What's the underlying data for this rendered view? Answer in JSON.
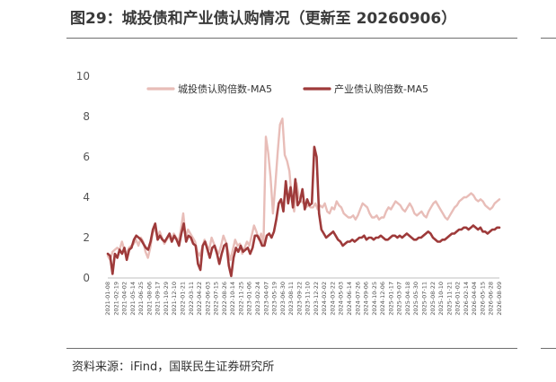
{
  "header": {
    "title": "图29：城投债和产业债认购情况（更新至 20260906）"
  },
  "footer": {
    "source": "资料来源：iFind，国联民生证券研究所"
  },
  "chart_data": {
    "type": "line",
    "title": "",
    "xlabel": "",
    "ylabel": "",
    "ylim": [
      0,
      10
    ],
    "yticks": [
      0,
      2,
      4,
      6,
      8,
      10
    ],
    "grid": false,
    "legend_position": "top-center",
    "x_tick_labels": [
      "2021-01-08",
      "2021-02-19",
      "2021-04-02",
      "2021-05-14",
      "2021-06-25",
      "2021-08-06",
      "2021-09-17",
      "2021-10-29",
      "2021-12-10",
      "2022-01-21",
      "2022-03-11",
      "2022-04-22",
      "2022-06-03",
      "2022-07-15",
      "2022-08-26",
      "2022-10-14",
      "2022-11-25",
      "2023-01-06",
      "2023-02-24",
      "2023-04-07",
      "2023-05-19",
      "2023-06-30",
      "2023-08-11",
      "2023-09-22",
      "2023-11-10",
      "2023-12-22",
      "2024-02-02",
      "2024-03-22",
      "2024-05-03",
      "2024-06-14",
      "2024-07-26",
      "2024-09-06",
      "2024-10-25",
      "2024-12-06",
      "2025-01-17",
      "2025-03-07",
      "2025-04-18",
      "2025-05-30",
      "2025-07-11",
      "2025-08-22",
      "2025-10-10",
      "2025-11-21",
      "2026-01-02",
      "2026-02-14",
      "2026-04-04",
      "2026-05-15",
      "2026-06-28",
      "2026-08-09"
    ],
    "series": [
      {
        "name": "城投债认购倍数-MA5",
        "color": "#e8bdb8",
        "values": [
          1.1,
          0.9,
          1.3,
          1.4,
          1.5,
          1.4,
          1.8,
          1.4,
          1.2,
          1.5,
          1.6,
          1.7,
          1.9,
          1.6,
          2.0,
          1.8,
          1.3,
          1.0,
          1.5,
          2.2,
          2.5,
          2.0,
          2.3,
          2.0,
          1.7,
          1.9,
          2.1,
          1.8,
          2.2,
          2.0,
          1.8,
          2.4,
          3.2,
          2.0,
          2.4,
          2.2,
          2.0,
          1.8,
          1.3,
          1.1,
          1.5,
          1.9,
          1.6,
          1.4,
          2.0,
          1.7,
          1.4,
          1.2,
          1.6,
          2.1,
          1.8,
          1.3,
          0.9,
          1.4,
          1.9,
          1.6,
          1.7,
          1.2,
          1.5,
          1.8,
          1.6,
          2.1,
          2.6,
          2.3,
          1.9,
          2.2,
          1.6,
          7.0,
          6.2,
          5.0,
          3.2,
          4.6,
          6.2,
          7.6,
          7.9,
          6.1,
          5.8,
          5.3,
          3.9,
          3.3,
          4.7,
          4.0,
          3.8,
          3.7,
          3.5,
          3.6,
          3.5,
          3.5,
          3.7,
          3.4,
          3.6,
          3.5,
          3.7,
          3.3,
          3.2,
          3.5,
          3.4,
          3.8,
          3.6,
          3.5,
          3.2,
          3.1,
          3.0,
          3.0,
          3.1,
          2.9,
          3.1,
          3.4,
          3.7,
          3.6,
          3.5,
          3.2,
          3.0,
          3.0,
          3.1,
          2.9,
          3.0,
          3.0,
          3.3,
          3.5,
          3.4,
          3.6,
          3.8,
          3.7,
          3.6,
          3.4,
          3.3,
          3.5,
          3.7,
          3.5,
          3.2,
          3.1,
          3.2,
          3.3,
          3.1,
          3.0,
          3.3,
          3.5,
          3.7,
          3.8,
          3.6,
          3.4,
          3.2,
          3.0,
          2.9,
          3.1,
          3.3,
          3.5,
          3.6,
          3.8,
          3.9,
          4.0,
          4.0,
          4.1,
          4.2,
          4.1,
          3.9,
          3.8,
          3.9,
          3.8,
          3.6,
          3.5,
          3.4,
          3.5,
          3.7,
          3.8,
          3.9
        ]
      },
      {
        "name": "产业债认购倍数-MA5",
        "color": "#9e3a3a",
        "values": [
          1.2,
          1.1,
          0.2,
          1.2,
          1.0,
          1.4,
          1.2,
          1.5,
          0.9,
          1.4,
          1.5,
          1.9,
          2.1,
          2.0,
          1.9,
          1.7,
          1.5,
          1.4,
          1.8,
          2.4,
          2.7,
          1.9,
          2.1,
          1.9,
          1.8,
          2.0,
          2.2,
          1.8,
          2.1,
          1.9,
          1.6,
          2.2,
          2.7,
          1.8,
          2.1,
          2.0,
          1.7,
          1.6,
          0.7,
          0.4,
          1.6,
          1.8,
          1.4,
          1.0,
          1.5,
          1.6,
          1.2,
          0.7,
          1.2,
          1.6,
          1.7,
          0.6,
          0.1,
          1.0,
          1.5,
          1.3,
          1.6,
          1.3,
          1.4,
          1.5,
          1.2,
          1.5,
          2.1,
          2.1,
          1.9,
          1.6,
          1.6,
          2.1,
          2.2,
          2.0,
          2.3,
          2.9,
          3.7,
          3.9,
          3.3,
          4.8,
          3.7,
          4.5,
          3.5,
          4.9,
          3.6,
          3.8,
          4.4,
          3.4,
          3.9,
          3.6,
          3.7,
          6.5,
          6.0,
          3.2,
          2.4,
          2.2,
          2.0,
          2.1,
          2.2,
          2.3,
          2.1,
          1.9,
          1.8,
          1.6,
          1.7,
          1.8,
          1.8,
          1.9,
          1.8,
          1.9,
          2.0,
          2.0,
          2.1,
          1.9,
          2.0,
          2.0,
          1.9,
          2.0,
          2.0,
          2.1,
          2.0,
          1.9,
          1.9,
          2.0,
          2.1,
          2.1,
          2.0,
          2.1,
          2.0,
          2.1,
          2.2,
          2.1,
          2.0,
          1.9,
          1.9,
          2.0,
          2.0,
          2.1,
          2.2,
          2.3,
          2.2,
          2.0,
          1.9,
          1.8,
          1.8,
          1.9,
          1.9,
          2.0,
          2.1,
          2.2,
          2.2,
          2.3,
          2.4,
          2.4,
          2.5,
          2.5,
          2.4,
          2.5,
          2.6,
          2.5,
          2.4,
          2.5,
          2.3,
          2.3,
          2.2,
          2.3,
          2.4,
          2.4,
          2.5,
          2.5
        ]
      }
    ]
  }
}
